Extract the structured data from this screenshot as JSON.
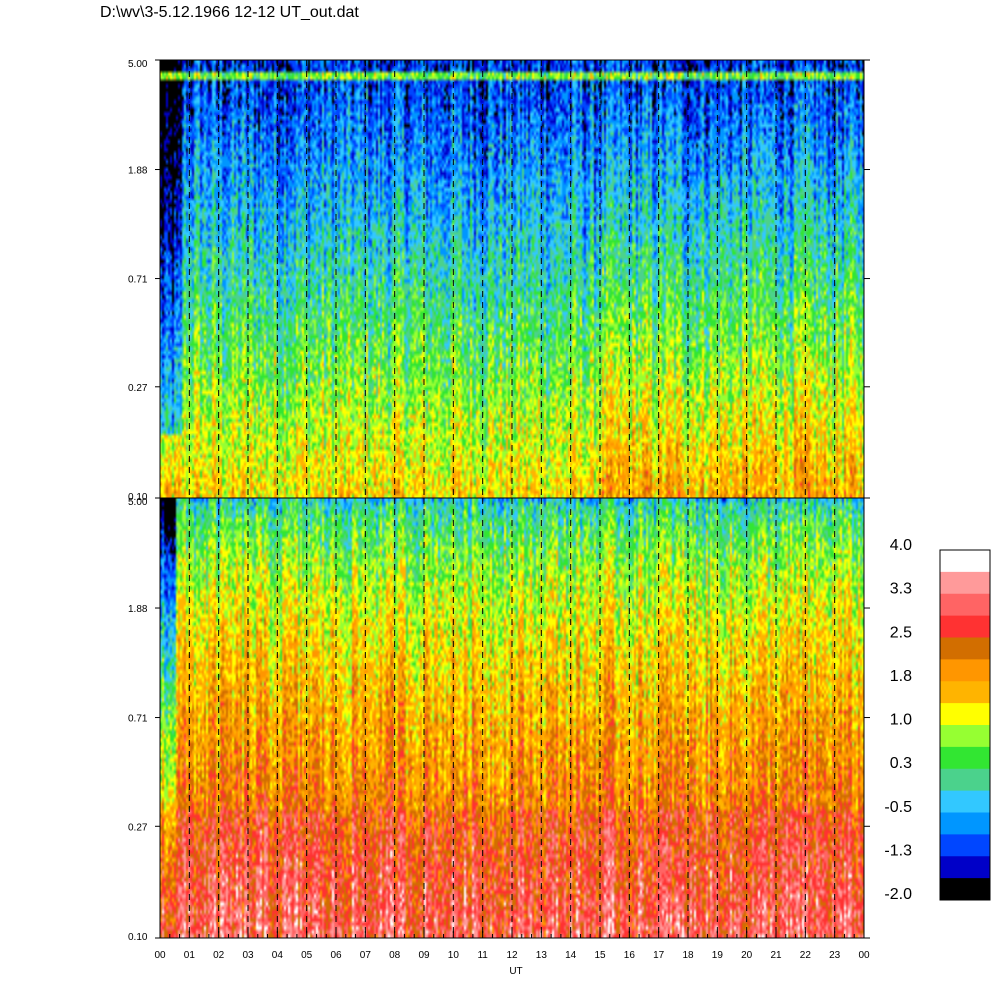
{
  "title": "D:\\wv\\3-5.12.1966  12-12 UT_out.dat",
  "chart_data": [
    {
      "type": "heatmap",
      "panel": "top",
      "xlabel": "",
      "x_ticks": [
        "00",
        "01",
        "02",
        "03",
        "04",
        "05",
        "06",
        "07",
        "08",
        "09",
        "10",
        "11",
        "12",
        "13",
        "14",
        "15",
        "16",
        "17",
        "18",
        "19",
        "20",
        "21",
        "22",
        "23",
        "00"
      ],
      "y_ticks": [
        "5.00",
        "1.88",
        "0.71",
        "0.27",
        "0.10"
      ],
      "ylim": [
        0.1,
        5.0
      ],
      "y_scale": "log",
      "dashed_vertical_gridlines": true,
      "intensity_description": "low frequencies mostly yellow-orange (~1.0-1.8), rising to cyan-blue (~-0.5 to -1.3) at high frequencies; dark blue band near 00 UT",
      "horizontal_band_near_top": true
    },
    {
      "type": "heatmap",
      "panel": "bottom",
      "xlabel": "UT",
      "x_ticks": [
        "00",
        "01",
        "02",
        "03",
        "04",
        "05",
        "06",
        "07",
        "08",
        "09",
        "10",
        "11",
        "12",
        "13",
        "14",
        "15",
        "16",
        "17",
        "18",
        "19",
        "20",
        "21",
        "22",
        "23",
        "00"
      ],
      "y_ticks": [
        "5.00",
        "1.88",
        "0.71",
        "0.27",
        "0.10"
      ],
      "ylim": [
        0.1,
        5.0
      ],
      "y_scale": "log",
      "dashed_vertical_gridlines": true,
      "intensity_description": "low frequencies red-dark orange (~2.5), mid orange-yellow (~1.0-2.0), top green-cyan; cyan strip near 00 UT"
    }
  ],
  "colorbar": {
    "labels": [
      "4.0",
      "3.3",
      "2.5",
      "1.8",
      "1.0",
      "0.3",
      "-0.5",
      "-1.3",
      "-2.0"
    ],
    "range": [
      -2.0,
      4.0
    ],
    "colors": [
      "#ffffff",
      "#ff9a9a",
      "#ff6464",
      "#ff3232",
      "#d26e00",
      "#ff9600",
      "#ffb400",
      "#ffff00",
      "#96ff32",
      "#32e632",
      "#4bd28c",
      "#32c8ff",
      "#0096ff",
      "#0046ff",
      "#0000c8",
      "#000000"
    ]
  }
}
